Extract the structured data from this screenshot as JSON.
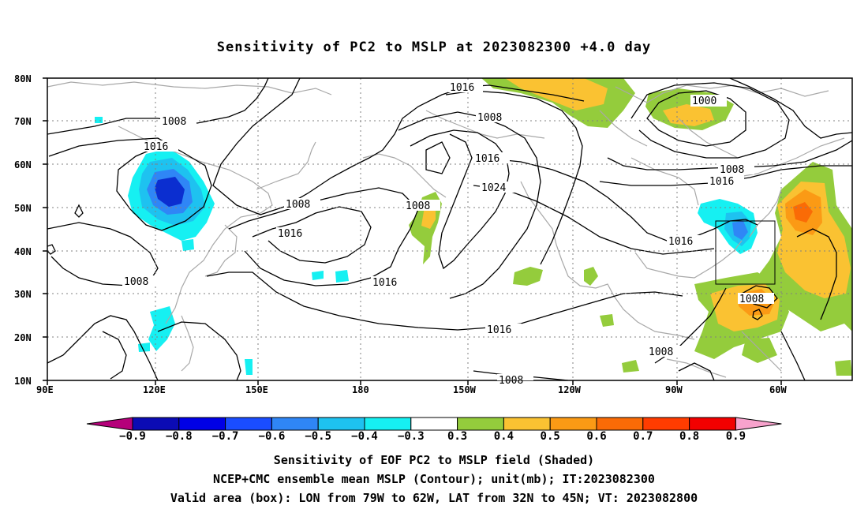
{
  "title": "Sensitivity of PC2 to MSLP at 2023082300 +4.0 day",
  "map": {
    "lon_ticks": [
      "90E",
      "120E",
      "150E",
      "180",
      "150W",
      "120W",
      "90W",
      "60W"
    ],
    "lat_ticks": [
      "80N",
      "70N",
      "60N",
      "50N",
      "40N",
      "30N",
      "20N",
      "10N"
    ],
    "contour_labels": [
      "1016",
      "1008",
      "1016",
      "1008",
      "1016",
      "1000",
      "1008",
      "1008",
      "1016",
      "1024",
      "1008",
      "1016",
      "1008",
      "1016",
      "1016",
      "1016",
      "1008",
      "1008",
      "1008"
    ],
    "box": {
      "lon_range": [
        "79W",
        "62W"
      ],
      "lat_range": [
        "32N",
        "45N"
      ]
    }
  },
  "colorbar": {
    "labels": [
      "-0.9",
      "-0.8",
      "-0.7",
      "-0.6",
      "-0.5",
      "-0.4",
      "-0.3",
      "0.3",
      "0.4",
      "0.5",
      "0.6",
      "0.7",
      "0.8",
      "0.9"
    ],
    "colors": [
      "#b5007a",
      "#0b0bb4",
      "#0000e6",
      "#1a4dff",
      "#2f86f6",
      "#1ec2f0",
      "#16f0f2",
      "#ffffff",
      "#94cc3c",
      "#fac232",
      "#fb9a15",
      "#fa6b06",
      "#ff3c00",
      "#f20000",
      "#f7a2cc"
    ]
  },
  "shading_colors": {
    "neg_light": "#16f0f2",
    "neg_mid": "#1ec2f0",
    "neg_strong": "#2f86f6",
    "neg_core": "#0b2ed0",
    "pos_green": "#94cc3c",
    "pos_yellow": "#fac232",
    "pos_orange": "#fb9a15",
    "pos_red": "#fa6b06"
  },
  "caption": {
    "line1": "Sensitivity of EOF PC2 to MSLP field (Shaded)",
    "line2": "NCEP+CMC ensemble mean MSLP (Contour); unit(mb); IT:2023082300",
    "line3": "Valid area (box): LON from 79W to 62W, LAT from 32N to 45N; VT: 2023082800"
  }
}
